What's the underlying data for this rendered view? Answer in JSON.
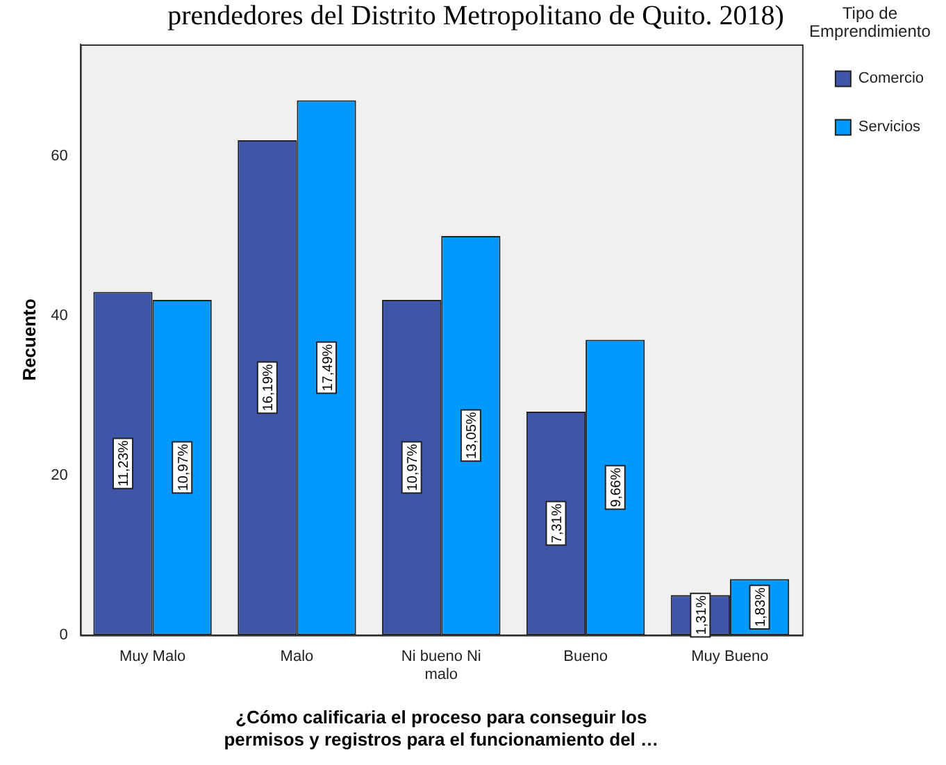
{
  "chart_data": {
    "type": "bar",
    "title": "prendedores del Distrito Metropolitano de Quito. 2018)",
    "xlabel": "¿Cómo calificaria el proceso para conseguir los permisos y registros para el funcionamiento del …",
    "ylabel": "Recuento",
    "legend_title": "Tipo de Emprendimiento",
    "categories": [
      "Muy Malo",
      "Malo",
      "Ni bueno Ni malo",
      "Bueno",
      "Muy Bueno"
    ],
    "series": [
      {
        "name": "Comercio",
        "color": "#3f55a8",
        "values": [
          43,
          62,
          42,
          28,
          5
        ]
      },
      {
        "name": "Servicios",
        "color": "#0099ff",
        "values": [
          42,
          67,
          50,
          37,
          7
        ]
      }
    ],
    "annotations": [
      {
        "text": "11,23%",
        "x": "Muy Malo",
        "y": 21.5
      },
      {
        "text": "16,19%",
        "x": "Malo",
        "y": 31
      },
      {
        "text": "10,97%",
        "x": "Ni bueno Ni malo",
        "y": 21
      },
      {
        "text": "7,31%",
        "x": "Bueno",
        "y": 14
      },
      {
        "text": "1,31%",
        "x": "Muy Bueno",
        "y": 2.5
      },
      {
        "text": "10,97%",
        "x": "Muy Malo",
        "y": 21
      },
      {
        "text": "17,49%",
        "x": "Malo",
        "y": 33.5
      },
      {
        "text": "13,05%",
        "x": "Ni bueno Ni malo",
        "y": 25
      },
      {
        "text": "9,66%",
        "x": "Bueno",
        "y": 18.5
      },
      {
        "text": "1,83%",
        "x": "Muy Bueno",
        "y": 3.5
      }
    ],
    "ylim": [
      0,
      74
    ],
    "yticks": [
      0,
      20,
      40,
      60
    ],
    "grid": false,
    "legend": "top right"
  }
}
